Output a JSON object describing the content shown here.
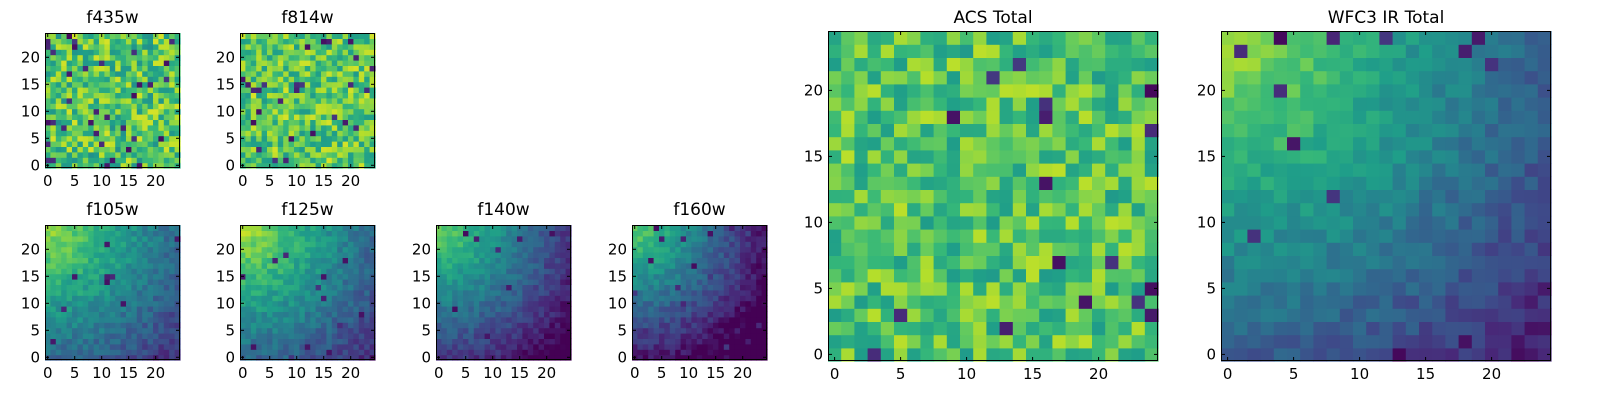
{
  "figure": {
    "background": "#ffffff",
    "colormap": "viridis"
  },
  "chart_data": [
    {
      "type": "heatmap",
      "title": "f435w",
      "grid_size": 25,
      "xticks": [
        0,
        5,
        10,
        15,
        20
      ],
      "yticks": [
        0,
        5,
        10,
        15,
        20
      ],
      "xlim": [
        0,
        24
      ],
      "ylim": [
        0,
        24
      ],
      "pattern": "noise",
      "base": 0.72,
      "trend": 0.0,
      "noise": 0.22,
      "dark_fraction": 0.05,
      "seed": 11
    },
    {
      "type": "heatmap",
      "title": "f814w",
      "grid_size": 25,
      "xticks": [
        0,
        5,
        10,
        15,
        20
      ],
      "yticks": [
        0,
        5,
        10,
        15,
        20
      ],
      "xlim": [
        0,
        24
      ],
      "ylim": [
        0,
        24
      ],
      "pattern": "noise",
      "base": 0.74,
      "trend": 0.0,
      "noise": 0.2,
      "dark_fraction": 0.04,
      "seed": 23
    },
    {
      "type": "heatmap",
      "title": "f105w",
      "grid_size": 25,
      "xticks": [
        0,
        5,
        10,
        15,
        20
      ],
      "yticks": [
        0,
        5,
        10,
        15,
        20
      ],
      "xlim": [
        0,
        24
      ],
      "ylim": [
        0,
        24
      ],
      "pattern": "gradient",
      "base": 0.45,
      "trend": 0.45,
      "noise": 0.08,
      "dark_fraction": 0.02,
      "seed": 37
    },
    {
      "type": "heatmap",
      "title": "f125w",
      "grid_size": 25,
      "xticks": [
        0,
        5,
        10,
        15,
        20
      ],
      "yticks": [
        0,
        5,
        10,
        15,
        20
      ],
      "xlim": [
        0,
        24
      ],
      "ylim": [
        0,
        24
      ],
      "pattern": "gradient",
      "base": 0.45,
      "trend": 0.48,
      "noise": 0.08,
      "dark_fraction": 0.02,
      "seed": 41
    },
    {
      "type": "heatmap",
      "title": "f140w",
      "grid_size": 25,
      "xticks": [
        0,
        5,
        10,
        15,
        20
      ],
      "yticks": [
        0,
        5,
        10,
        15,
        20
      ],
      "xlim": [
        0,
        24
      ],
      "ylim": [
        0,
        24
      ],
      "pattern": "gradient",
      "base": 0.3,
      "trend": 0.55,
      "noise": 0.07,
      "dark_fraction": 0.02,
      "seed": 53
    },
    {
      "type": "heatmap",
      "title": "f160w",
      "grid_size": 25,
      "xticks": [
        0,
        5,
        10,
        15,
        20
      ],
      "yticks": [
        0,
        5,
        10,
        15,
        20
      ],
      "xlim": [
        0,
        24
      ],
      "ylim": [
        0,
        24
      ],
      "pattern": "gradient",
      "base": 0.22,
      "trend": 0.62,
      "noise": 0.07,
      "dark_fraction": 0.03,
      "seed": 67
    },
    {
      "type": "heatmap",
      "title": "ACS Total",
      "grid_size": 25,
      "xticks": [
        0,
        5,
        10,
        15,
        20
      ],
      "yticks": [
        0,
        5,
        10,
        15,
        20
      ],
      "xlim": [
        0,
        24
      ],
      "ylim": [
        0,
        24
      ],
      "pattern": "noise",
      "base": 0.72,
      "trend": 0.0,
      "noise": 0.18,
      "dark_fraction": 0.035,
      "seed": 79
    },
    {
      "type": "heatmap",
      "title": "WFC3 IR Total",
      "grid_size": 25,
      "xticks": [
        0,
        5,
        10,
        15,
        20
      ],
      "yticks": [
        0,
        5,
        10,
        15,
        20
      ],
      "xlim": [
        0,
        24
      ],
      "ylim": [
        0,
        24
      ],
      "pattern": "gradient",
      "base": 0.42,
      "trend": 0.5,
      "noise": 0.07,
      "dark_fraction": 0.02,
      "seed": 97
    }
  ]
}
